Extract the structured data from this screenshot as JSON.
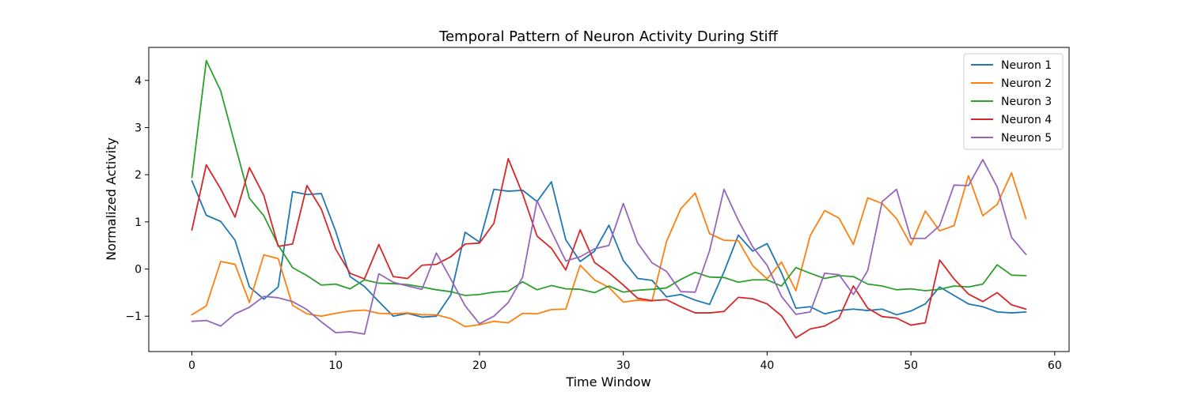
{
  "chart_data": {
    "type": "line",
    "title": "Temporal Pattern of Neuron Activity During Stiff",
    "xlabel": "Time Window",
    "ylabel": "Normalized Activity",
    "xlim": [
      -3,
      61
    ],
    "ylim": [
      -1.75,
      4.7
    ],
    "xticks": [
      0,
      10,
      20,
      30,
      40,
      50,
      60
    ],
    "yticks": [
      -1,
      0,
      1,
      2,
      3,
      4
    ],
    "grid": false,
    "legend_position": "top-right",
    "x": [
      0,
      1,
      2,
      3,
      4,
      5,
      6,
      7,
      8,
      9,
      10,
      11,
      12,
      13,
      14,
      15,
      16,
      17,
      18,
      19,
      20,
      21,
      22,
      23,
      24,
      25,
      26,
      27,
      28,
      29,
      30,
      31,
      32,
      33,
      34,
      35,
      36,
      37,
      38,
      39,
      40,
      41,
      42,
      43,
      44,
      45,
      46,
      47,
      48,
      49,
      50,
      51,
      52,
      53,
      54,
      55,
      56,
      57,
      58
    ],
    "series": [
      {
        "name": "Neuron 1",
        "color": "#1f77b4",
        "values": [
          1.87,
          1.14,
          1.01,
          0.61,
          -0.38,
          -0.64,
          -0.38,
          1.64,
          1.58,
          1.6,
          0.8,
          -0.16,
          -0.37,
          -0.69,
          -1.0,
          -0.94,
          -1.02,
          -1.0,
          -0.55,
          0.78,
          0.57,
          1.69,
          1.65,
          1.67,
          1.43,
          1.85,
          0.62,
          0.16,
          0.38,
          0.93,
          0.18,
          -0.2,
          -0.24,
          -0.59,
          -0.54,
          -0.66,
          -0.75,
          -0.06,
          0.72,
          0.38,
          0.54,
          -0.08,
          -0.83,
          -0.8,
          -0.95,
          -0.88,
          -0.85,
          -0.88,
          -0.85,
          -0.97,
          -0.89,
          -0.74,
          -0.38,
          -0.56,
          -0.74,
          -0.8,
          -0.91,
          -0.93,
          -0.91
        ]
      },
      {
        "name": "Neuron 2",
        "color": "#ff7f0e",
        "values": [
          -0.97,
          -0.78,
          0.16,
          0.1,
          -0.71,
          0.3,
          0.22,
          -0.77,
          -0.95,
          -1.0,
          -0.94,
          -0.89,
          -0.87,
          -0.94,
          -0.95,
          -0.93,
          -0.97,
          -0.97,
          -1.05,
          -1.22,
          -1.18,
          -1.11,
          -1.14,
          -0.94,
          -0.95,
          -0.86,
          -0.85,
          0.08,
          -0.23,
          -0.39,
          -0.7,
          -0.66,
          -0.68,
          0.58,
          1.28,
          1.61,
          0.75,
          0.61,
          0.6,
          0.07,
          -0.21,
          0.15,
          -0.46,
          0.71,
          1.24,
          1.08,
          0.52,
          1.51,
          1.39,
          1.07,
          0.51,
          1.23,
          0.81,
          0.92,
          1.98,
          1.13,
          1.37,
          2.04,
          1.07
        ]
      },
      {
        "name": "Neuron 3",
        "color": "#2ca02c",
        "values": [
          1.94,
          4.42,
          3.78,
          2.64,
          1.5,
          1.13,
          0.51,
          0.03,
          -0.14,
          -0.34,
          -0.32,
          -0.42,
          -0.23,
          -0.3,
          -0.31,
          -0.33,
          -0.38,
          -0.44,
          -0.48,
          -0.56,
          -0.54,
          -0.49,
          -0.47,
          -0.27,
          -0.44,
          -0.35,
          -0.42,
          -0.43,
          -0.5,
          -0.36,
          -0.49,
          -0.45,
          -0.43,
          -0.4,
          -0.22,
          -0.07,
          -0.17,
          -0.18,
          -0.28,
          -0.23,
          -0.23,
          -0.36,
          0.03,
          -0.09,
          -0.2,
          -0.14,
          -0.16,
          -0.32,
          -0.36,
          -0.44,
          -0.42,
          -0.46,
          -0.43,
          -0.36,
          -0.38,
          -0.32,
          0.09,
          -0.13,
          -0.14
        ]
      },
      {
        "name": "Neuron 4",
        "color": "#d62728",
        "values": [
          0.83,
          2.21,
          1.7,
          1.1,
          2.15,
          1.56,
          0.48,
          0.53,
          1.77,
          1.27,
          0.42,
          -0.09,
          -0.21,
          0.52,
          -0.16,
          -0.2,
          0.08,
          0.1,
          0.26,
          0.53,
          0.55,
          0.97,
          2.34,
          1.59,
          0.7,
          0.44,
          -0.02,
          0.83,
          0.14,
          -0.08,
          -0.34,
          -0.62,
          -0.67,
          -0.65,
          -0.8,
          -0.93,
          -0.93,
          -0.9,
          -0.6,
          -0.63,
          -0.74,
          -0.99,
          -1.46,
          -1.27,
          -1.21,
          -1.04,
          -0.36,
          -0.83,
          -1.01,
          -1.04,
          -1.19,
          -1.14,
          0.19,
          -0.21,
          -0.53,
          -0.69,
          -0.5,
          -0.76,
          -0.85
        ]
      },
      {
        "name": "Neuron 5",
        "color": "#9467bd",
        "values": [
          -1.11,
          -1.09,
          -1.21,
          -0.95,
          -0.81,
          -0.58,
          -0.61,
          -0.69,
          -0.86,
          -1.12,
          -1.35,
          -1.33,
          -1.38,
          -0.1,
          -0.28,
          -0.36,
          -0.43,
          0.34,
          -0.21,
          -0.78,
          -1.16,
          -1.0,
          -0.71,
          -0.17,
          1.45,
          0.8,
          0.17,
          0.26,
          0.43,
          0.5,
          1.39,
          0.55,
          0.13,
          -0.05,
          -0.48,
          -0.49,
          0.39,
          1.69,
          1.03,
          0.47,
          0.08,
          -0.58,
          -0.96,
          -0.91,
          -0.09,
          -0.12,
          -0.54,
          -0.03,
          1.43,
          1.69,
          0.65,
          0.65,
          0.92,
          1.78,
          1.77,
          2.32,
          1.74,
          0.67,
          0.31
        ]
      }
    ]
  }
}
